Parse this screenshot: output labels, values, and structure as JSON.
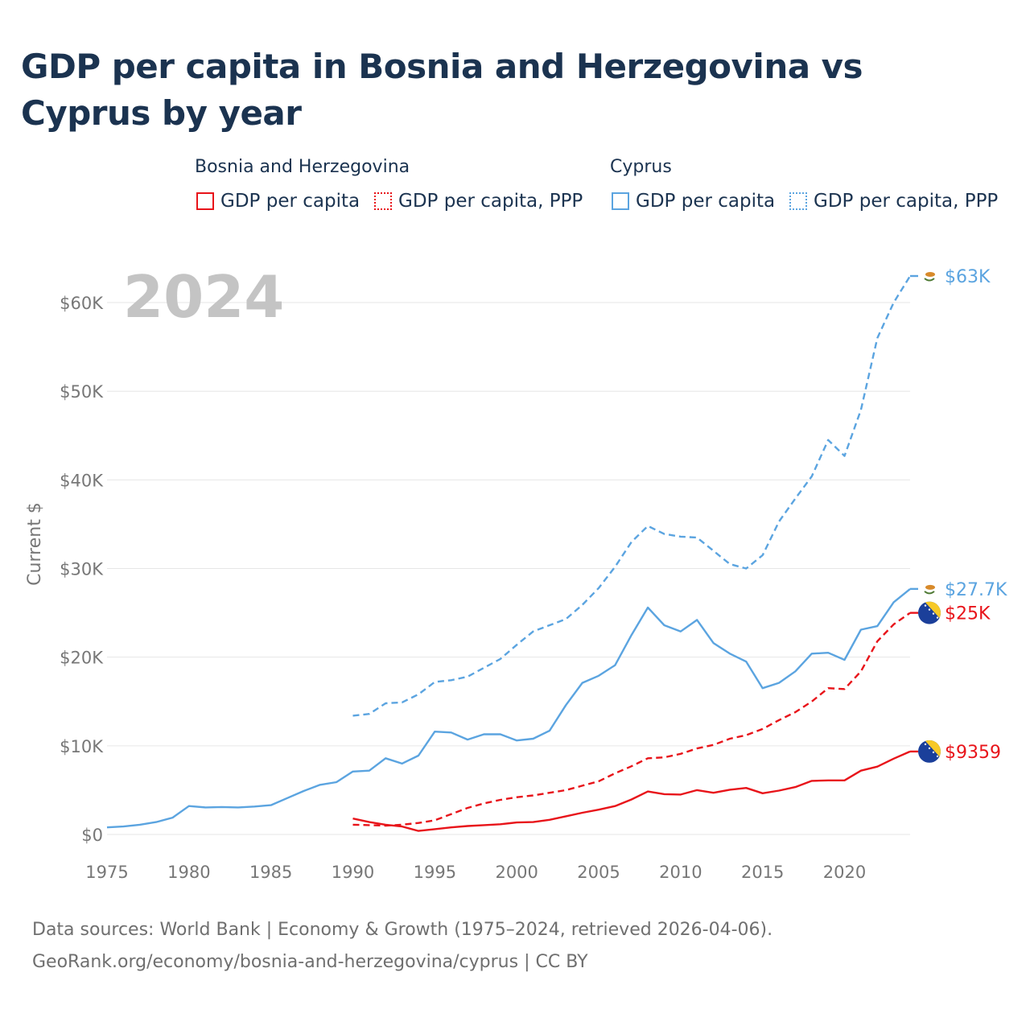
{
  "title": "GDP per capita in Bosnia and Herzegovina vs Cyprus by year",
  "legend": {
    "groups": [
      {
        "name": "Bosnia and Herzegovina",
        "color": "#e8141a",
        "items": [
          {
            "label": "GDP per capita",
            "style": "solid"
          },
          {
            "label": "GDP per capita, PPP",
            "style": "dotted"
          }
        ]
      },
      {
        "name": "Cyprus",
        "color": "#5ba4e0",
        "items": [
          {
            "label": "GDP per capita",
            "style": "solid"
          },
          {
            "label": "GDP per capita, PPP",
            "style": "dotted"
          }
        ]
      }
    ]
  },
  "year_watermark": "2024",
  "footer": {
    "line1": "Data sources: World Bank | Economy & Growth (1975–2024, retrieved 2026-04-06).",
    "line2": "GeoRank.org/economy/bosnia-and-herzegovina/cyprus | CC BY"
  },
  "chart_data": {
    "type": "line",
    "title": "GDP per capita in Bosnia and Herzegovina vs Cyprus by year",
    "xlabel": "",
    "ylabel": "Current $",
    "xlim": [
      1975,
      2024
    ],
    "ylim": [
      0,
      65000
    ],
    "x_ticks": [
      1975,
      1980,
      1985,
      1990,
      1995,
      2000,
      2005,
      2010,
      2015,
      2020
    ],
    "y_ticks": [
      0,
      10000,
      20000,
      30000,
      40000,
      50000,
      60000
    ],
    "y_tick_labels": [
      "$0",
      "$10K",
      "$20K",
      "$30K",
      "$40K",
      "$50K",
      "$60K"
    ],
    "grid": true,
    "series": [
      {
        "name": "Cyprus GDP per capita, PPP",
        "country": "Cyprus",
        "color": "#5ba4e0",
        "dash": true,
        "end_label": "$63K",
        "flag": "cyprus",
        "x": [
          1990,
          1991,
          1992,
          1993,
          1994,
          1995,
          1996,
          1997,
          1998,
          1999,
          2000,
          2001,
          2002,
          2003,
          2004,
          2005,
          2006,
          2007,
          2008,
          2009,
          2010,
          2011,
          2012,
          2013,
          2014,
          2015,
          2016,
          2017,
          2018,
          2019,
          2020,
          2021,
          2022,
          2023,
          2024
        ],
        "y": [
          13400,
          13600,
          14800,
          14900,
          15800,
          17200,
          17400,
          17800,
          18800,
          19800,
          21400,
          22900,
          23600,
          24300,
          25900,
          27800,
          30200,
          33000,
          34800,
          33900,
          33600,
          33500,
          32000,
          30500,
          30000,
          31500,
          35300,
          37900,
          40400,
          44500,
          42700,
          47900,
          56000,
          60000,
          63000
        ]
      },
      {
        "name": "Cyprus GDP per capita",
        "country": "Cyprus",
        "color": "#5ba4e0",
        "dash": false,
        "end_label": "$27.7K",
        "flag": "cyprus",
        "x": [
          1975,
          1976,
          1977,
          1978,
          1979,
          1980,
          1981,
          1982,
          1983,
          1984,
          1985,
          1986,
          1987,
          1988,
          1989,
          1990,
          1991,
          1992,
          1993,
          1994,
          1995,
          1996,
          1997,
          1998,
          1999,
          2000,
          2001,
          2002,
          2003,
          2004,
          2005,
          2006,
          2007,
          2008,
          2009,
          2010,
          2011,
          2012,
          2013,
          2014,
          2015,
          2016,
          2017,
          2018,
          2019,
          2020,
          2021,
          2022,
          2023,
          2024
        ],
        "y": [
          800,
          900,
          1100,
          1400,
          1900,
          3200,
          3050,
          3100,
          3050,
          3150,
          3300,
          4100,
          4900,
          5600,
          5900,
          7100,
          7200,
          8600,
          8000,
          8900,
          11600,
          11500,
          10700,
          11300,
          11300,
          10600,
          10800,
          11700,
          14600,
          17100,
          17900,
          19100,
          22500,
          25600,
          23600,
          22900,
          24200,
          21600,
          20400,
          19500,
          16500,
          17100,
          18400,
          20400,
          20500,
          19700,
          23100,
          23500,
          26200,
          27700
        ]
      },
      {
        "name": "Bosnia and Herzegovina GDP per capita, PPP",
        "country": "Bosnia and Herzegovina",
        "color": "#e8141a",
        "dash": true,
        "end_label": "$25K",
        "flag": "bosnia",
        "x": [
          1990,
          1991,
          1992,
          1993,
          1994,
          1995,
          1996,
          1997,
          1998,
          1999,
          2000,
          2001,
          2002,
          2003,
          2004,
          2005,
          2006,
          2007,
          2008,
          2009,
          2010,
          2011,
          2012,
          2013,
          2014,
          2015,
          2016,
          2017,
          2018,
          2019,
          2020,
          2021,
          2022,
          2023,
          2024
        ],
        "y": [
          1100,
          1050,
          1000,
          1100,
          1300,
          1600,
          2300,
          3000,
          3500,
          3900,
          4200,
          4400,
          4700,
          5000,
          5500,
          6000,
          6900,
          7700,
          8600,
          8700,
          9100,
          9700,
          10100,
          10800,
          11200,
          11900,
          12900,
          13800,
          15000,
          16500,
          16400,
          18400,
          21800,
          23700,
          25000
        ]
      },
      {
        "name": "Bosnia and Herzegovina GDP per capita",
        "country": "Bosnia and Herzegovina",
        "color": "#e8141a",
        "dash": false,
        "end_label": "$9359",
        "flag": "bosnia",
        "x": [
          1990,
          1991,
          1992,
          1993,
          1994,
          1995,
          1996,
          1997,
          1998,
          1999,
          2000,
          2001,
          2002,
          2003,
          2004,
          2005,
          2006,
          2007,
          2008,
          2009,
          2010,
          2011,
          2012,
          2013,
          2014,
          2015,
          2016,
          2017,
          2018,
          2019,
          2020,
          2021,
          2022,
          2023,
          2024
        ],
        "y": [
          1800,
          1400,
          1100,
          900,
          400,
          600,
          800,
          950,
          1050,
          1150,
          1350,
          1400,
          1650,
          2050,
          2450,
          2800,
          3200,
          3950,
          4850,
          4550,
          4500,
          5000,
          4700,
          5050,
          5250,
          4650,
          4950,
          5350,
          6050,
          6100,
          6100,
          7200,
          7650,
          8550,
          9359
        ]
      }
    ]
  }
}
